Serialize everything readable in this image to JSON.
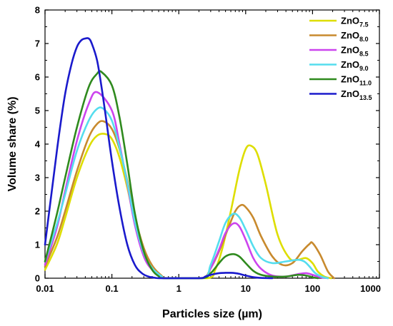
{
  "chart_data": {
    "type": "line",
    "xlabel": "Particles size (µm)",
    "ylabel": "Volume share (%)",
    "x_scale": "log",
    "xlim": [
      0.01,
      1000
    ],
    "ylim": [
      0,
      8
    ],
    "x_ticks": [
      0.01,
      0.1,
      1,
      10,
      100,
      1000
    ],
    "x_tick_labels": [
      "0.01",
      "0.1",
      "1",
      "10",
      "100",
      "1000"
    ],
    "y_ticks": [
      0,
      1,
      2,
      3,
      4,
      5,
      6,
      7,
      8
    ],
    "y_tick_labels": [
      "0",
      "1",
      "2",
      "3",
      "4",
      "5",
      "6",
      "7",
      "8"
    ],
    "grid": false,
    "legend_position": "top-right",
    "series": [
      {
        "name": "ZnO",
        "subscript": "7.5",
        "color": "#dede00",
        "x": [
          0.01,
          0.015,
          0.02,
          0.03,
          0.045,
          0.06,
          0.08,
          0.1,
          0.13,
          0.17,
          0.22,
          0.3,
          0.4,
          0.55,
          0.68,
          2.7,
          3.5,
          4.5,
          6,
          8,
          10,
          12,
          15,
          20,
          30,
          45,
          60,
          80,
          100,
          120,
          150,
          190
        ],
        "y": [
          0.25,
          1.0,
          1.8,
          3.0,
          3.9,
          4.25,
          4.3,
          4.15,
          3.6,
          2.7,
          1.7,
          0.85,
          0.35,
          0.08,
          0,
          0,
          0.25,
          0.9,
          2.0,
          3.2,
          3.85,
          3.95,
          3.7,
          2.8,
          1.3,
          0.6,
          0.55,
          0.6,
          0.45,
          0.2,
          0.05,
          0
        ]
      },
      {
        "name": "ZnO",
        "subscript": "8.0",
        "color": "#c88a2e",
        "x": [
          0.01,
          0.015,
          0.02,
          0.03,
          0.045,
          0.06,
          0.075,
          0.1,
          0.13,
          0.17,
          0.22,
          0.3,
          0.4,
          0.55,
          0.68,
          2.2,
          3,
          4,
          5.5,
          7,
          8.5,
          10,
          13,
          17,
          25,
          35,
          50,
          70,
          90,
          100,
          130,
          170,
          210
        ],
        "y": [
          0.35,
          1.2,
          2.0,
          3.2,
          4.2,
          4.6,
          4.68,
          4.45,
          3.85,
          2.9,
          1.85,
          0.9,
          0.38,
          0.08,
          0,
          0,
          0.3,
          0.8,
          1.5,
          2.0,
          2.18,
          2.12,
          1.8,
          1.25,
          0.65,
          0.4,
          0.45,
          0.8,
          1.02,
          1.05,
          0.7,
          0.2,
          0
        ]
      },
      {
        "name": "ZnO",
        "subscript": "8.5",
        "color": "#cc44ee",
        "x": [
          0.01,
          0.015,
          0.02,
          0.03,
          0.045,
          0.06,
          0.1,
          0.13,
          0.17,
          0.22,
          0.3,
          0.4,
          0.55,
          0.65,
          2.3,
          3,
          4,
          5,
          6.5,
          8,
          10,
          13,
          17,
          25,
          40,
          60,
          80,
          100,
          130,
          170
        ],
        "y": [
          0.4,
          1.5,
          2.6,
          4.1,
          5.2,
          5.55,
          5.0,
          4.0,
          2.8,
          1.6,
          0.65,
          0.25,
          0.05,
          0,
          0,
          0.3,
          0.85,
          1.35,
          1.63,
          1.55,
          1.15,
          0.6,
          0.28,
          0.08,
          0.05,
          0.12,
          0.15,
          0.1,
          0.03,
          0
        ]
      },
      {
        "name": "ZnO",
        "subscript": "9.0",
        "color": "#55ddee",
        "x": [
          0.01,
          0.015,
          0.02,
          0.03,
          0.045,
          0.06,
          0.075,
          0.1,
          0.13,
          0.17,
          0.22,
          0.3,
          0.4,
          0.55,
          0.65,
          2.3,
          3,
          4,
          5,
          6.5,
          8,
          10,
          13,
          17,
          25,
          40,
          60,
          75,
          90,
          110,
          140,
          170
        ],
        "y": [
          0.5,
          1.6,
          2.5,
          3.8,
          4.7,
          5.05,
          5.05,
          4.7,
          3.9,
          2.85,
          1.7,
          0.75,
          0.3,
          0.06,
          0,
          0,
          0.4,
          1.1,
          1.65,
          1.92,
          1.82,
          1.45,
          0.95,
          0.6,
          0.45,
          0.5,
          0.55,
          0.5,
          0.35,
          0.15,
          0.04,
          0
        ]
      },
      {
        "name": "ZnO",
        "subscript": "11.0",
        "color": "#2f8a1e",
        "x": [
          0.01,
          0.015,
          0.02,
          0.03,
          0.045,
          0.06,
          0.07,
          0.1,
          0.13,
          0.17,
          0.22,
          0.3,
          0.4,
          0.5,
          0.6,
          2.2,
          3,
          4,
          5,
          6.5,
          8,
          10,
          13,
          17,
          25,
          40,
          60,
          80,
          100,
          120
        ],
        "y": [
          0.5,
          1.9,
          3.0,
          4.5,
          5.7,
          6.1,
          6.15,
          5.75,
          4.8,
          3.4,
          1.95,
          0.8,
          0.25,
          0.06,
          0,
          0,
          0.15,
          0.45,
          0.65,
          0.72,
          0.65,
          0.45,
          0.22,
          0.1,
          0.05,
          0.05,
          0.1,
          0.08,
          0.03,
          0
        ]
      },
      {
        "name": "ZnO",
        "subscript": "13.5",
        "color": "#1a1acc",
        "x": [
          0.01,
          0.013,
          0.016,
          0.02,
          0.025,
          0.03,
          0.035,
          0.04,
          0.045,
          0.05,
          0.06,
          0.07,
          0.08,
          0.1,
          0.13,
          0.17,
          0.22,
          0.28,
          0.35,
          0.45,
          0.55,
          2.0,
          2.5,
          3,
          4,
          5,
          6,
          7,
          8,
          10,
          13,
          17,
          25
        ],
        "y": [
          1.0,
          2.8,
          4.2,
          5.5,
          6.4,
          6.9,
          7.1,
          7.15,
          7.15,
          7.0,
          6.5,
          5.7,
          4.9,
          3.5,
          2.1,
          1.0,
          0.4,
          0.15,
          0.05,
          0.01,
          0,
          0,
          0.05,
          0.1,
          0.15,
          0.16,
          0.16,
          0.15,
          0.13,
          0.08,
          0.03,
          0.01,
          0
        ]
      }
    ]
  }
}
